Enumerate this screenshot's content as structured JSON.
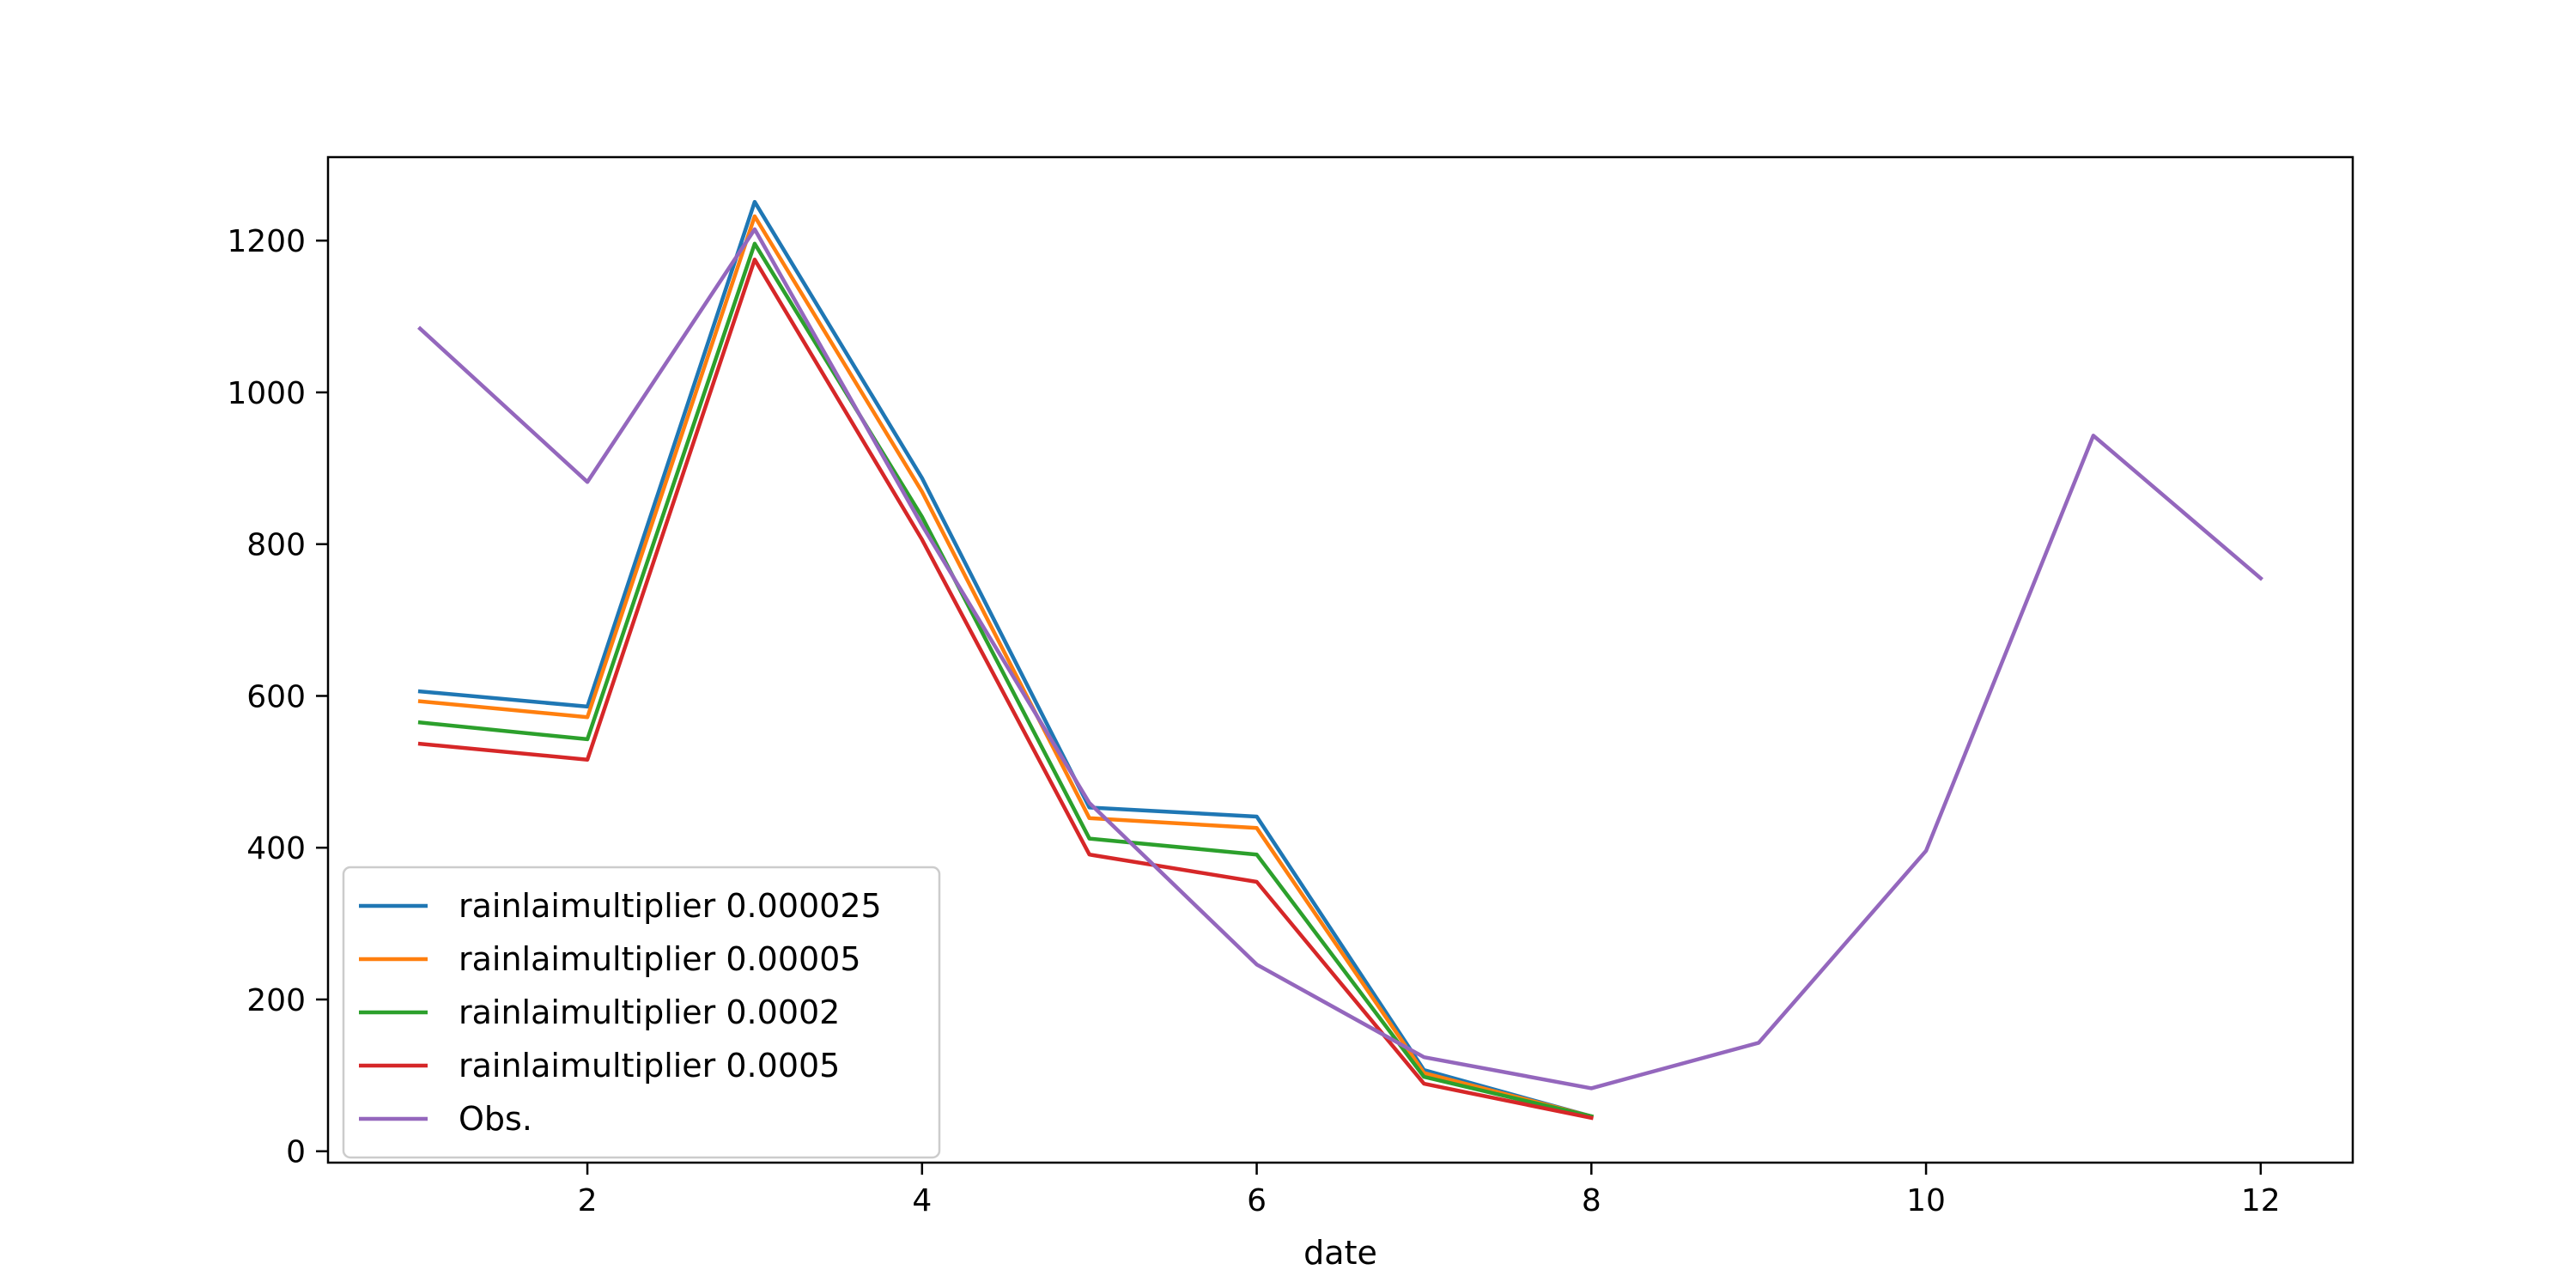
{
  "chart_data": {
    "type": "line",
    "title": "",
    "xlabel": "date",
    "ylabel": "",
    "xlim": [
      0.45,
      12.55
    ],
    "ylim": [
      -15,
      1310
    ],
    "xticks": [
      2,
      4,
      6,
      8,
      10,
      12
    ],
    "yticks": [
      0,
      200,
      400,
      600,
      800,
      1000,
      1200
    ],
    "grid": false,
    "legend_position": "lower-left",
    "series": [
      {
        "name": "rainlaimultiplier 0.000025",
        "color": "#1f77b4",
        "x": [
          1,
          2,
          3,
          4,
          5,
          6,
          7,
          8
        ],
        "values": [
          606,
          586,
          1251,
          887,
          453,
          441,
          107,
          46
        ]
      },
      {
        "name": "rainlaimultiplier 0.00005",
        "color": "#ff7f0e",
        "x": [
          1,
          2,
          3,
          4,
          5,
          6,
          7,
          8
        ],
        "values": [
          593,
          572,
          1232,
          869,
          439,
          426,
          103,
          46
        ]
      },
      {
        "name": "rainlaimultiplier 0.0002",
        "color": "#2ca02c",
        "x": [
          1,
          2,
          3,
          4,
          5,
          6,
          7,
          8
        ],
        "values": [
          565,
          543,
          1196,
          836,
          412,
          391,
          98,
          46
        ]
      },
      {
        "name": "rainlaimultiplier 0.0005",
        "color": "#d62728",
        "x": [
          1,
          2,
          3,
          4,
          5,
          6,
          7,
          8
        ],
        "values": [
          537,
          516,
          1175,
          806,
          391,
          355,
          89,
          44
        ]
      },
      {
        "name": "Obs.",
        "color": "#9467bd",
        "x": [
          1,
          2,
          3,
          4,
          5,
          6,
          7,
          8,
          9,
          10,
          11,
          12
        ],
        "values": [
          1084,
          882,
          1215,
          825,
          459,
          246,
          124,
          83,
          143,
          396,
          943,
          755
        ]
      }
    ]
  }
}
